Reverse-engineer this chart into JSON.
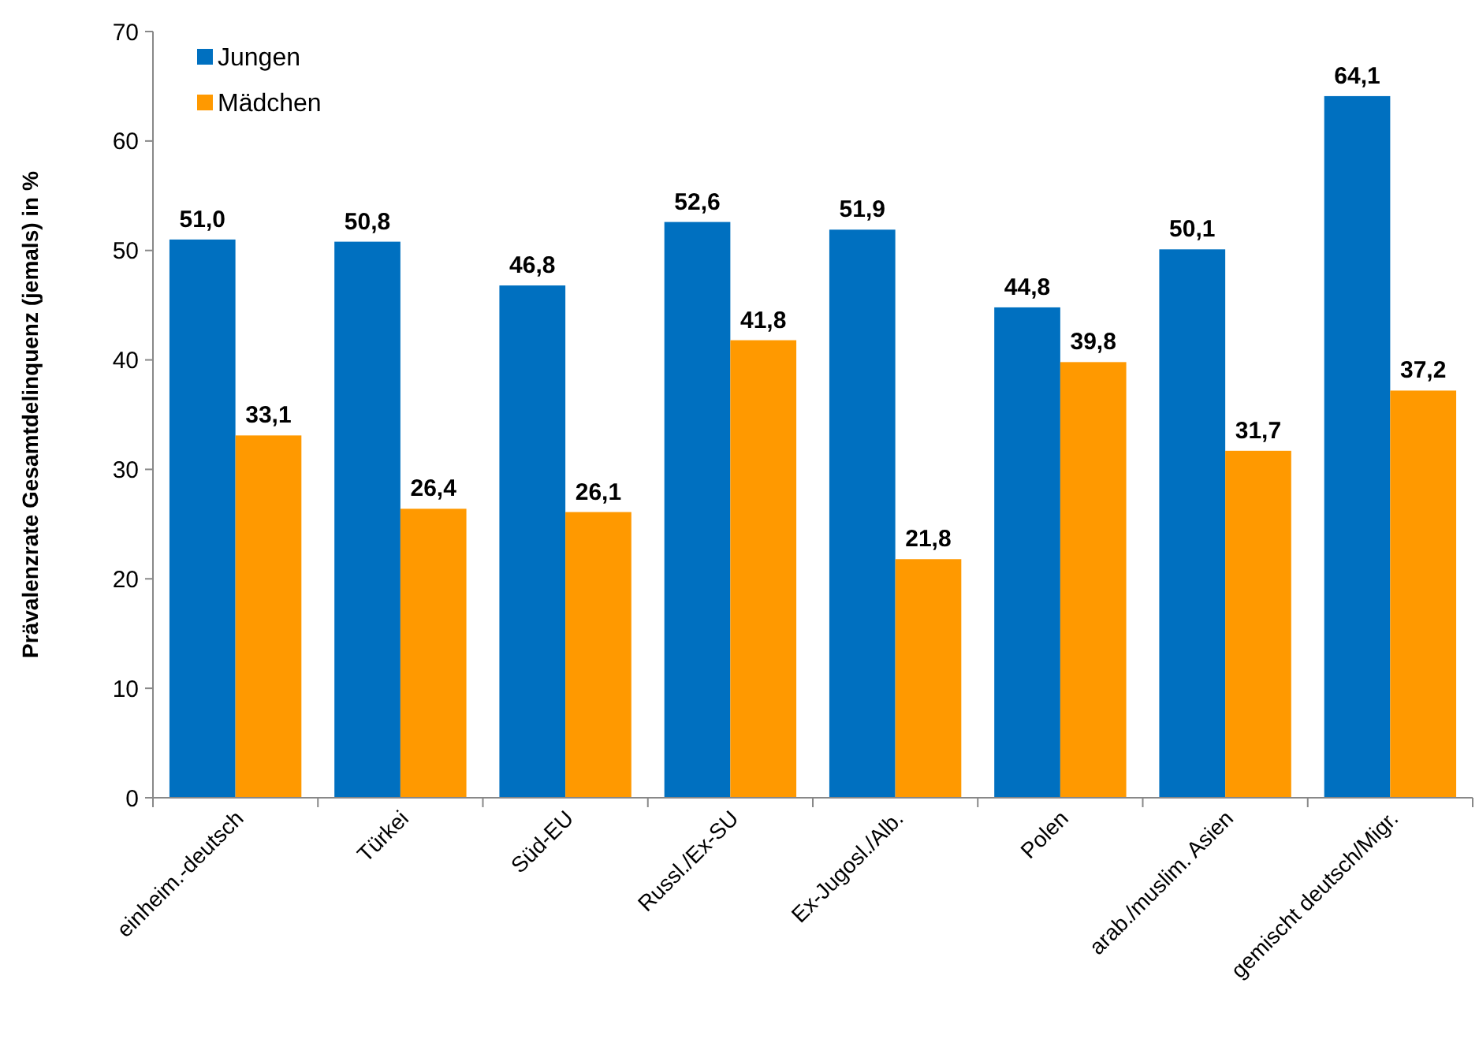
{
  "chart_data": {
    "type": "bar",
    "ylabel": "Prävalenzrate Gesamtdelinquenz (jemals) in %",
    "categories": [
      "einheim.-deutsch",
      "Türkei",
      "Süd-EU",
      "Russl./Ex-SU",
      "Ex-Jugosl./Alb.",
      "Polen",
      "arab./muslim. Asien",
      "gemischt deutsch/Migr."
    ],
    "series": [
      {
        "name": "Jungen",
        "color": "#0070c0",
        "values": [
          51.0,
          50.8,
          46.8,
          52.6,
          51.9,
          44.8,
          50.1,
          64.1
        ],
        "value_labels": [
          "51,0",
          "50,8",
          "46,8",
          "52,6",
          "51,9",
          "44,8",
          "50,1",
          "64,1"
        ]
      },
      {
        "name": "Mädchen",
        "color": "#ff9900",
        "values": [
          33.1,
          26.4,
          26.1,
          41.8,
          21.8,
          39.8,
          31.7,
          37.2
        ],
        "value_labels": [
          "33,1",
          "26,4",
          "26,1",
          "41,8",
          "21,8",
          "39,8",
          "31,7",
          "37,2"
        ]
      }
    ],
    "ylim": [
      0,
      70
    ],
    "yticks": [
      0,
      10,
      20,
      30,
      40,
      50,
      60,
      70
    ],
    "grid": false,
    "legend": "top left"
  }
}
